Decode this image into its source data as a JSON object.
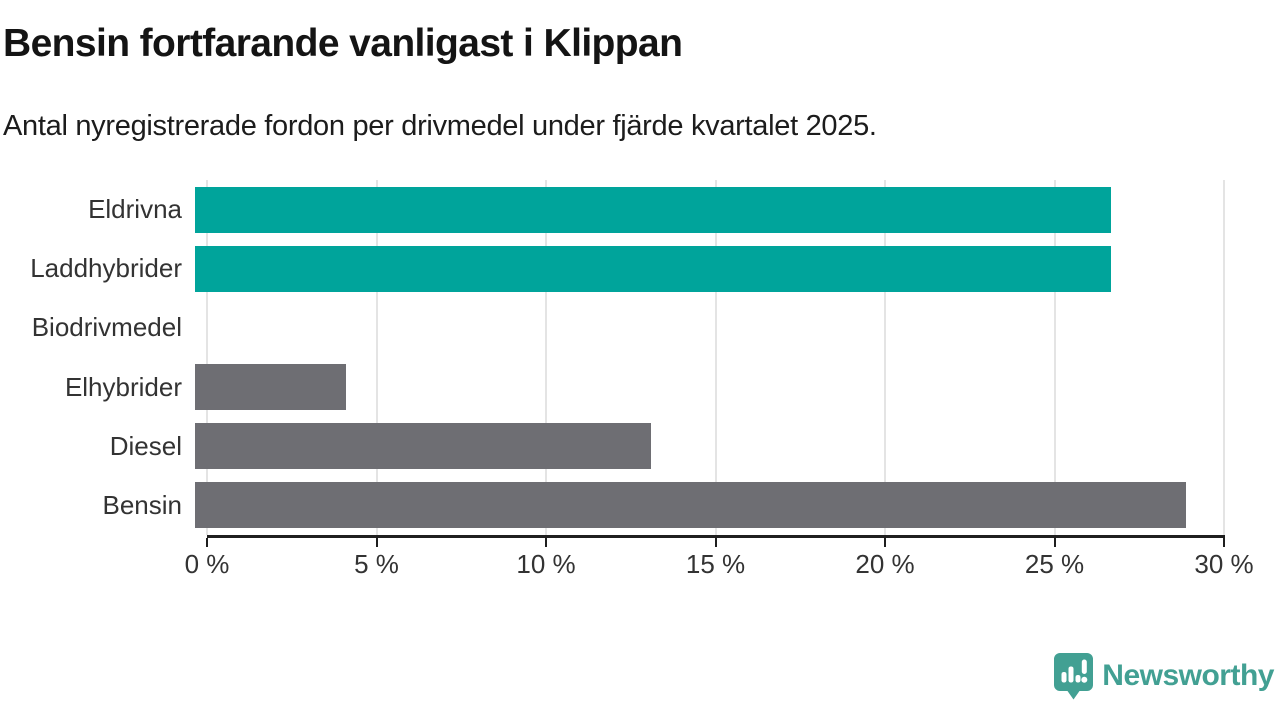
{
  "header": {
    "title": "Bensin fortfarande vanligast i Klippan",
    "subtitle": "Antal nyregistrerade fordon per drivmedel under fjärde kvartalet 2025."
  },
  "chart_data": {
    "type": "bar",
    "orientation": "horizontal",
    "title": "Bensin fortfarande vanligast i Klippan",
    "subtitle": "Antal nyregistrerade fordon per drivmedel under fjärde kvartalet 2025.",
    "categories": [
      "Eldrivna",
      "Laddhybrider",
      "Biodrivmedel",
      "Elhybrider",
      "Diesel",
      "Bensin"
    ],
    "values": [
      26.7,
      26.7,
      0,
      4.4,
      13.3,
      28.9
    ],
    "bar_colors": [
      "#00a49b",
      "#00a49b",
      "#6e6e73",
      "#6e6e73",
      "#6e6e73",
      "#6e6e73"
    ],
    "highlight_color": "#00a49b",
    "default_color": "#6e6e73",
    "xlabel": "",
    "ylabel": "",
    "xlim": [
      0,
      30
    ],
    "tick_values": [
      0,
      5,
      10,
      15,
      20,
      25,
      30
    ],
    "tick_labels": [
      "0 %",
      "5 %",
      "10 %",
      "15 %",
      "20 %",
      "25 %",
      "30 %"
    ],
    "grid": "vertical",
    "gridline_color": "#e4e4e4",
    "axis_color": "#1f1f1f",
    "legend": "none"
  },
  "branding": {
    "logo_text": "Newsworthy",
    "logo_color": "#42a093",
    "logo_icon": "newsworthy-pin-bar-chart-icon"
  }
}
